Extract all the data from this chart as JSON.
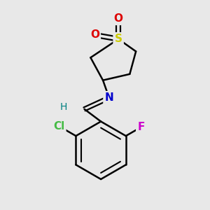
{
  "background_color": "#e8e8e8",
  "figsize": [
    3.0,
    3.0
  ],
  "dpi": 100,
  "atom_colors": {
    "S": "#cccc00",
    "O": "#dd0000",
    "N": "#0000cc",
    "H": "#008080",
    "F": "#cc00cc",
    "Cl": "#44bb44",
    "C": "#000000"
  }
}
